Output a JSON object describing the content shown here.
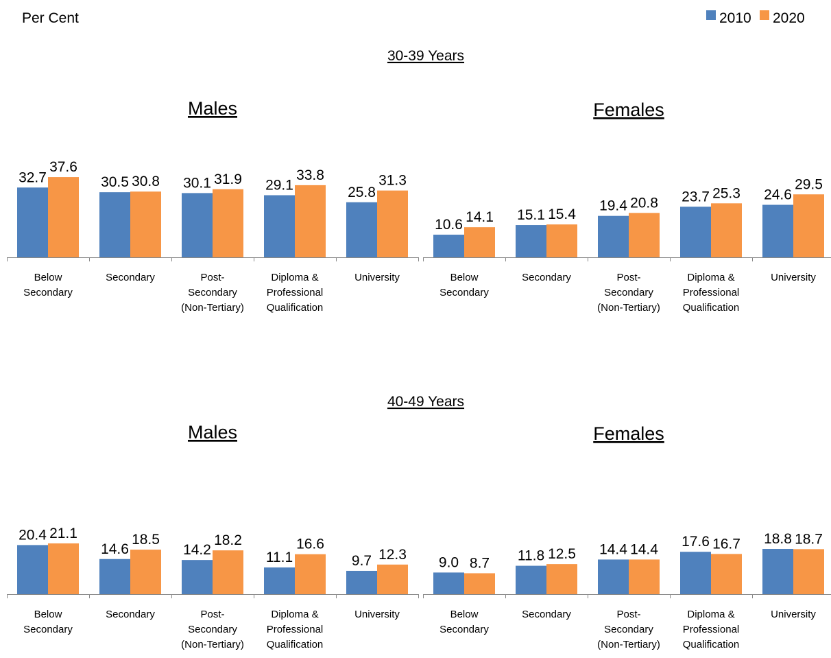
{
  "chart_data": {
    "type": "bar",
    "ylabel": "Per Cent",
    "legend": {
      "placement": "top-right",
      "series": [
        {
          "name": "2010",
          "color": "#4F81BD"
        },
        {
          "name": "2020",
          "color": "#F79646"
        }
      ]
    },
    "categories": [
      "Below Secondary",
      "Secondary",
      "Post-Secondary (Non-Tertiary)",
      "Diploma & Professional Qualification",
      "University"
    ],
    "sections": [
      {
        "title": "30-39 Years",
        "panels": [
          {
            "title": "Males",
            "series": [
              {
                "name": "2010",
                "values": [
                  32.7,
                  30.5,
                  30.1,
                  29.1,
                  25.8
                ]
              },
              {
                "name": "2020",
                "values": [
                  37.6,
                  30.8,
                  31.9,
                  33.8,
                  31.3
                ]
              }
            ]
          },
          {
            "title": "Females",
            "series": [
              {
                "name": "2010",
                "values": [
                  10.6,
                  15.1,
                  19.4,
                  23.7,
                  24.6
                ]
              },
              {
                "name": "2020",
                "values": [
                  14.1,
                  15.4,
                  20.8,
                  25.3,
                  29.5
                ]
              }
            ]
          }
        ]
      },
      {
        "title": "40-49 Years",
        "panels": [
          {
            "title": "Males",
            "series": [
              {
                "name": "2010",
                "values": [
                  20.4,
                  14.6,
                  14.2,
                  11.1,
                  9.7
                ]
              },
              {
                "name": "2020",
                "values": [
                  21.1,
                  18.5,
                  18.2,
                  16.6,
                  12.3
                ]
              }
            ]
          },
          {
            "title": "Females",
            "series": [
              {
                "name": "2010",
                "values": [
                  9.0,
                  11.8,
                  14.4,
                  17.6,
                  18.8
                ]
              },
              {
                "name": "2020",
                "values": [
                  8.7,
                  12.5,
                  14.4,
                  16.7,
                  18.7
                ]
              }
            ]
          }
        ]
      }
    ],
    "tick_lines": [
      [
        "Below",
        "Secondary"
      ],
      [
        "Secondary"
      ],
      [
        "Post-",
        "Secondary",
        "(Non-Tertiary)"
      ],
      [
        "Diploma &",
        "Professional",
        "Qualification"
      ],
      [
        "University"
      ]
    ]
  }
}
